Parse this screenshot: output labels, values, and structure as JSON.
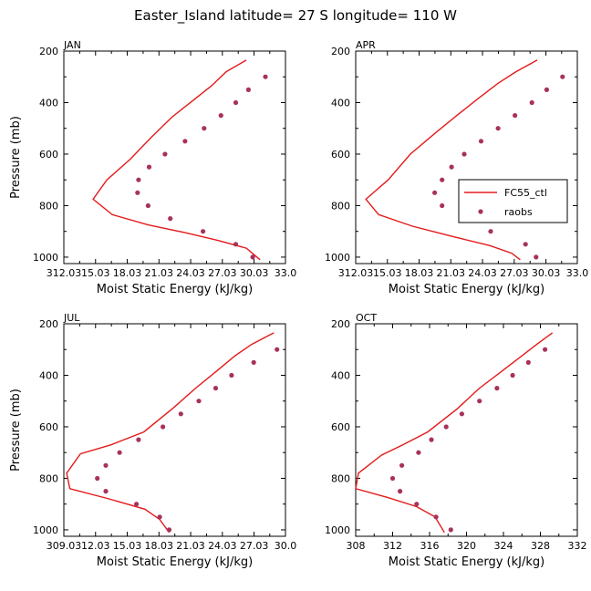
{
  "figure_title": "Easter_Island  latitude= 27 S longitude= 110 W",
  "colors": {
    "model": "#e31a1c",
    "obs": "#a8325c",
    "axis": "#000000"
  },
  "legend": {
    "model_label": "FC55_ctl",
    "obs_label": "raobs",
    "panel": "APR",
    "placement": "center-right"
  },
  "chart_data": [
    {
      "type": "line",
      "panel": "JAN",
      "xlabel": "Moist Static Energy (kJ/kg)",
      "ylabel": "Pressure (mb)",
      "xlim": [
        312.03,
        333.0
      ],
      "ylim": [
        1025,
        200
      ],
      "xticks": [
        312.03,
        315.03,
        318.03,
        321.03,
        324.03,
        327.03,
        330.03,
        333.0
      ],
      "xtick_labels": [
        "312.03",
        "15.03",
        "18.03",
        "21.03",
        "24.03",
        "27.03",
        "30.03",
        "33.0"
      ],
      "yticks": [
        200,
        400,
        600,
        800,
        1000
      ],
      "ytick_labels": [
        "200",
        "400",
        "600",
        "800",
        "1000"
      ],
      "series": [
        {
          "name": "FC55_ctl",
          "style": "line",
          "points": [
            [
              329.3,
              235
            ],
            [
              327.4,
              280
            ],
            [
              326.0,
              335
            ],
            [
              324.3,
              390
            ],
            [
              322.3,
              455
            ],
            [
              320.3,
              535
            ],
            [
              318.3,
              620
            ],
            [
              316.1,
              700
            ],
            [
              314.8,
              775
            ],
            [
              316.6,
              835
            ],
            [
              320.0,
              875
            ],
            [
              323.5,
              905
            ],
            [
              326.6,
              935
            ],
            [
              329.3,
              965
            ],
            [
              330.6,
              1010
            ]
          ]
        },
        {
          "name": "raobs",
          "style": "markers",
          "points": [
            [
              331.1,
              300
            ],
            [
              329.5,
              350
            ],
            [
              328.3,
              400
            ],
            [
              326.9,
              450
            ],
            [
              325.3,
              500
            ],
            [
              323.5,
              550
            ],
            [
              321.6,
              600
            ],
            [
              320.1,
              650
            ],
            [
              319.1,
              700
            ],
            [
              319.0,
              750
            ],
            [
              320.0,
              800
            ],
            [
              322.1,
              850
            ],
            [
              325.2,
              900
            ],
            [
              328.3,
              950
            ],
            [
              329.9,
              1000
            ]
          ]
        }
      ]
    },
    {
      "type": "line",
      "panel": "APR",
      "xlabel": "Moist Static Energy (kJ/kg)",
      "ylabel": "",
      "xlim": [
        312.03,
        333.0
      ],
      "ylim": [
        1025,
        200
      ],
      "xticks": [
        312.03,
        315.03,
        318.03,
        321.03,
        324.03,
        327.03,
        330.03,
        333.0
      ],
      "xtick_labels": [
        "312.03",
        "15.03",
        "18.03",
        "21.03",
        "24.03",
        "27.03",
        "30.03",
        "33.0"
      ],
      "yticks": [
        200,
        400,
        600,
        800,
        1000
      ],
      "ytick_labels": [
        "200",
        "400",
        "600",
        "800",
        "1000"
      ],
      "series": [
        {
          "name": "FC55_ctl",
          "style": "line",
          "points": [
            [
              329.2,
              235
            ],
            [
              327.2,
              280
            ],
            [
              325.5,
              325
            ],
            [
              323.6,
              385
            ],
            [
              321.6,
              450
            ],
            [
              319.5,
              520
            ],
            [
              317.2,
              600
            ],
            [
              315.1,
              700
            ],
            [
              313.0,
              775
            ],
            [
              314.2,
              835
            ],
            [
              317.4,
              880
            ],
            [
              321.2,
              920
            ],
            [
              324.7,
              955
            ],
            [
              326.8,
              985
            ],
            [
              327.6,
              1010
            ]
          ]
        },
        {
          "name": "raobs",
          "style": "markers",
          "points": [
            [
              331.6,
              300
            ],
            [
              330.1,
              350
            ],
            [
              328.7,
              400
            ],
            [
              327.1,
              450
            ],
            [
              325.5,
              500
            ],
            [
              323.9,
              550
            ],
            [
              322.3,
              600
            ],
            [
              321.1,
              650
            ],
            [
              320.2,
              700
            ],
            [
              319.5,
              750
            ],
            [
              320.2,
              800
            ],
            [
              322.3,
              850
            ],
            [
              324.8,
              900
            ],
            [
              328.1,
              950
            ],
            [
              329.1,
              1000
            ]
          ]
        }
      ]
    },
    {
      "type": "line",
      "panel": "JUL",
      "xlabel": "Moist Static Energy (kJ/kg)",
      "ylabel": "Pressure (mb)",
      "xlim": [
        309.03,
        330.0
      ],
      "ylim": [
        1025,
        200
      ],
      "xticks": [
        309.03,
        312.03,
        315.03,
        318.03,
        321.03,
        324.03,
        327.03,
        330.0
      ],
      "xtick_labels": [
        "309.03",
        "12.03",
        "15.03",
        "18.03",
        "21.03",
        "24.03",
        "27.03",
        "30.0"
      ],
      "yticks": [
        200,
        400,
        600,
        800,
        1000
      ],
      "ytick_labels": [
        "200",
        "400",
        "600",
        "800",
        "1000"
      ],
      "series": [
        {
          "name": "FC55_ctl",
          "style": "line",
          "points": [
            [
              328.9,
              235
            ],
            [
              326.8,
              280
            ],
            [
              325.2,
              325
            ],
            [
              323.6,
              380
            ],
            [
              321.5,
              450
            ],
            [
              319.3,
              530
            ],
            [
              316.6,
              620
            ],
            [
              313.5,
              670
            ],
            [
              310.6,
              705
            ],
            [
              309.3,
              780
            ],
            [
              309.6,
              840
            ],
            [
              313.3,
              880
            ],
            [
              316.7,
              920
            ],
            [
              318.1,
              960
            ],
            [
              319.0,
              1010
            ]
          ]
        },
        {
          "name": "raobs",
          "style": "markers",
          "points": [
            [
              329.2,
              300
            ],
            [
              327.0,
              350
            ],
            [
              324.9,
              400
            ],
            [
              323.4,
              450
            ],
            [
              321.8,
              500
            ],
            [
              320.1,
              550
            ],
            [
              318.4,
              600
            ],
            [
              316.1,
              650
            ],
            [
              314.3,
              700
            ],
            [
              313.0,
              750
            ],
            [
              312.2,
              800
            ],
            [
              313.0,
              850
            ],
            [
              315.9,
              900
            ],
            [
              318.1,
              950
            ],
            [
              319.0,
              1000
            ]
          ]
        }
      ]
    },
    {
      "type": "line",
      "panel": "OCT",
      "xlabel": "Moist Static Energy (kJ/kg)",
      "ylabel": "",
      "xlim": [
        308,
        332
      ],
      "ylim": [
        1025,
        200
      ],
      "xticks": [
        308,
        312,
        316,
        320,
        324,
        328,
        332
      ],
      "xtick_labels": [
        "308",
        "312",
        "316",
        "320",
        "324",
        "328",
        "332"
      ],
      "yticks": [
        200,
        400,
        600,
        800,
        1000
      ],
      "ytick_labels": [
        "200",
        "400",
        "600",
        "800",
        "1000"
      ],
      "series": [
        {
          "name": "FC55_ctl",
          "style": "line",
          "points": [
            [
              329.3,
              235
            ],
            [
              327.6,
              280
            ],
            [
              325.8,
              330
            ],
            [
              323.8,
              385
            ],
            [
              321.4,
              450
            ],
            [
              319.0,
              530
            ],
            [
              315.8,
              620
            ],
            [
              313.1,
              670
            ],
            [
              310.8,
              710
            ],
            [
              308.3,
              780
            ],
            [
              308.0,
              840
            ],
            [
              311.5,
              875
            ],
            [
              314.6,
              910
            ],
            [
              316.6,
              950
            ],
            [
              317.6,
              1010
            ]
          ]
        },
        {
          "name": "raobs",
          "style": "markers",
          "points": [
            [
              328.5,
              300
            ],
            [
              326.7,
              350
            ],
            [
              325.0,
              400
            ],
            [
              323.3,
              450
            ],
            [
              321.4,
              500
            ],
            [
              319.5,
              550
            ],
            [
              317.8,
              600
            ],
            [
              316.2,
              650
            ],
            [
              314.8,
              700
            ],
            [
              313.0,
              750
            ],
            [
              312.0,
              800
            ],
            [
              312.8,
              850
            ],
            [
              314.6,
              900
            ],
            [
              316.7,
              950
            ],
            [
              318.3,
              1000
            ]
          ]
        }
      ]
    }
  ]
}
